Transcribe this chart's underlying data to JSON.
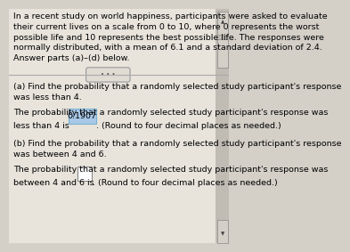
{
  "bg_color": "#d4d0c8",
  "text_bg_color": "#e8e4dc",
  "header_text": "In a recent study on world happiness, participants were asked to evaluate\ntheir current lives on a scale from 0 to 10, where 0 represents the worst\npossible life and 10 represents the best possible life. The responses were\nnormally distributed, with a mean of 6.1 and a standard deviation of 2.4.\nAnswer parts (a)–(d) below.",
  "dots_label": "• • •",
  "part_a_question": "(a) Find the probability that a randomly selected study participant's response\nwas less than 4.",
  "part_a_answer_prefix": "The probability that a randomly selected study participant's response was\nless than 4 is ",
  "part_a_answer_value": "0.1907",
  "part_a_answer_suffix": ". (Round to four decimal places as needed.)",
  "part_b_question": "(b) Find the probability that a randomly selected study participant's response\nwas between 4 and 6.",
  "part_b_answer_prefix": "The probability that a randomly selected study participant's response was\nbetween 4 and 6 is ",
  "part_b_answer_suffix": ". (Round to four decimal places as needed.)",
  "highlight_color": "#a8c8e8",
  "box_color": "#ffffff",
  "font_size": 6.8,
  "title_font_size": 6.8
}
